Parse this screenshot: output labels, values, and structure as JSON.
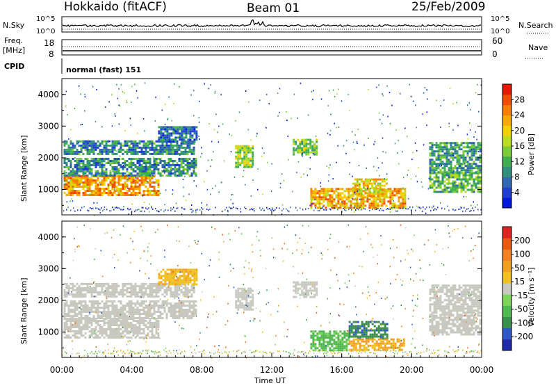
{
  "header": {
    "station": "Hokkaido (fitACF)",
    "beam": "Beam 01",
    "date": "25/Feb/2009"
  },
  "status_panels": {
    "noise_left": "N.Sky",
    "noise_right": "N.Search",
    "noise_ticks": [
      "10^5",
      "10^0"
    ],
    "freq_left_line1": "Freq.",
    "freq_left_line2": "[MHz]",
    "freq_ticks": [
      "18",
      "8"
    ],
    "nave_right": "Nave",
    "nave_ticks": [
      "60",
      "0"
    ],
    "cpid_label": "CPID",
    "cpid_value": "normal (fast) 151"
  },
  "chart_data": [
    {
      "type": "heatmap",
      "title": "",
      "xlabel": "Time UT",
      "ylabel": "Slant Range [km]",
      "xlim": [
        0,
        24
      ],
      "ylim": [
        200,
        4500
      ],
      "x_ticks": [
        "00:00",
        "04:00",
        "08:00",
        "12:00",
        "16:00",
        "20:00",
        "00:00"
      ],
      "y_ticks": [
        "1000",
        "2000",
        "3000",
        "4000"
      ],
      "colorbar": {
        "label": "Power [dB]",
        "ticks": [
          "4",
          "8",
          "12",
          "16",
          "20",
          "24",
          "28"
        ],
        "range": [
          0,
          30
        ],
        "colors": [
          "#0018e0",
          "#1f3fd2",
          "#2f67b0",
          "#2f8f7a",
          "#3fae50",
          "#7ccc38",
          "#b9dc20",
          "#f0d000",
          "#f5a800",
          "#f57e00",
          "#ef4e00",
          "#e61800"
        ]
      },
      "echo_regions": [
        {
          "t0": 0.1,
          "t1": 5.5,
          "r0": 850,
          "r1": 1450,
          "value": 22
        },
        {
          "t0": 0.1,
          "t1": 7.7,
          "r0": 1450,
          "r1": 2000,
          "value": 9
        },
        {
          "t0": 0.1,
          "t1": 7.6,
          "r0": 2150,
          "r1": 2550,
          "value": 8
        },
        {
          "t0": 5.5,
          "t1": 7.7,
          "r0": 2500,
          "r1": 3000,
          "value": 7
        },
        {
          "t0": 9.9,
          "t1": 10.9,
          "r0": 1700,
          "r1": 2400,
          "value": 15
        },
        {
          "t0": 13.2,
          "t1": 14.6,
          "r0": 2100,
          "r1": 2600,
          "value": 14
        },
        {
          "t0": 14.2,
          "t1": 19.6,
          "r0": 450,
          "r1": 1050,
          "value": 21
        },
        {
          "t0": 16.6,
          "t1": 18.6,
          "r0": 800,
          "r1": 1350,
          "value": 19
        },
        {
          "t0": 21.0,
          "t1": 23.95,
          "r0": 950,
          "r1": 1550,
          "value": 12
        },
        {
          "t0": 21.0,
          "t1": 23.95,
          "r0": 1550,
          "r1": 2500,
          "value": 10
        }
      ]
    },
    {
      "type": "heatmap",
      "title": "",
      "xlabel": "Time UT",
      "ylabel": "Slant Range [km]",
      "xlim": [
        0,
        24
      ],
      "ylim": [
        200,
        4500
      ],
      "x_ticks": [
        "00:00",
        "04:00",
        "08:00",
        "12:00",
        "16:00",
        "20:00",
        "00:00"
      ],
      "y_ticks": [
        "1000",
        "2000",
        "3000",
        "4000"
      ],
      "colorbar": {
        "label": "Velocity [m s⁻¹]",
        "ticks": [
          "200",
          "100",
          "50",
          "15",
          "-15",
          "-50",
          "-100",
          "-200"
        ],
        "range": [
          -250,
          250
        ],
        "colors": [
          "#1e2aa8",
          "#2f57c8",
          "#3a8f4a",
          "#4fb84f",
          "#7cd45a",
          "#c8c8c0",
          "#f0c020",
          "#f0a020",
          "#f08020",
          "#e85a10",
          "#e02020"
        ]
      },
      "echo_regions": [
        {
          "t0": 0.1,
          "t1": 5.5,
          "r0": 850,
          "r1": 1450,
          "value": 0
        },
        {
          "t0": 0.1,
          "t1": 7.7,
          "r0": 1450,
          "r1": 2000,
          "value": 0
        },
        {
          "t0": 0.1,
          "t1": 7.6,
          "r0": 2150,
          "r1": 2550,
          "value": 0
        },
        {
          "t0": 5.5,
          "t1": 7.7,
          "r0": 2500,
          "r1": 3000,
          "value": 60
        },
        {
          "t0": 9.9,
          "t1": 10.9,
          "r0": 1700,
          "r1": 2400,
          "value": 0
        },
        {
          "t0": 13.2,
          "t1": 14.6,
          "r0": 2100,
          "r1": 2600,
          "value": 0
        },
        {
          "t0": 14.2,
          "t1": 16.4,
          "r0": 450,
          "r1": 1050,
          "value": -80
        },
        {
          "t0": 16.4,
          "t1": 18.6,
          "r0": 800,
          "r1": 1350,
          "value": -150
        },
        {
          "t0": 16.4,
          "t1": 19.6,
          "r0": 450,
          "r1": 800,
          "value": 70
        },
        {
          "t0": 21.0,
          "t1": 23.95,
          "r0": 950,
          "r1": 1550,
          "value": 0
        },
        {
          "t0": 21.0,
          "t1": 23.95,
          "r0": 1550,
          "r1": 2500,
          "value": 0
        }
      ]
    }
  ]
}
